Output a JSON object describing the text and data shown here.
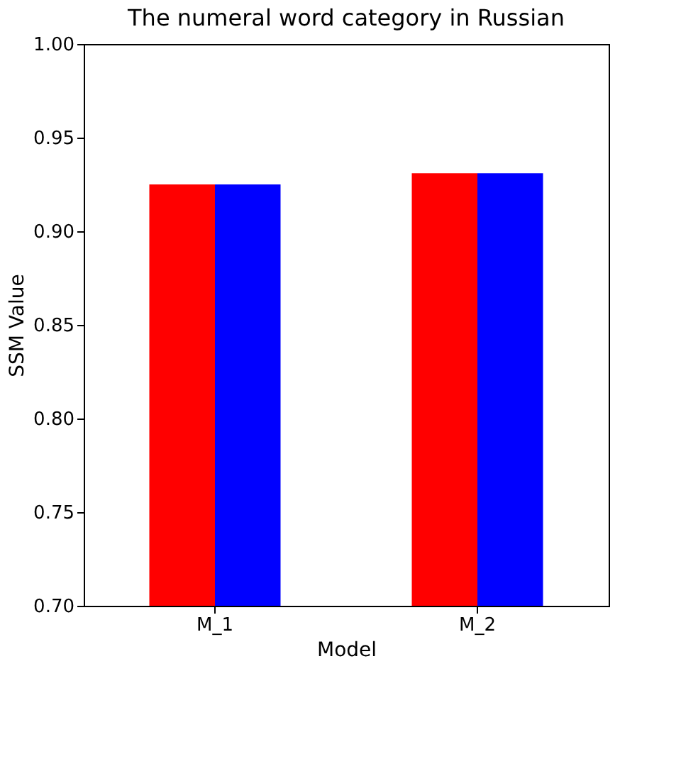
{
  "chart_data": {
    "type": "bar",
    "title": "The numeral word category in Russian",
    "xlabel": "Model",
    "ylabel": "SSM Value",
    "categories": [
      "M_1",
      "M_2"
    ],
    "series": [
      {
        "color": "#ff0000",
        "values": [
          0.925,
          0.931
        ]
      },
      {
        "color": "#0000ff",
        "values": [
          0.925,
          0.931
        ]
      }
    ],
    "ylim": [
      0.7,
      1.0
    ],
    "yticks": [
      {
        "value": 0.7,
        "label": "0.70"
      },
      0.75,
      {
        "value": 0.8,
        "label": "0.80"
      },
      0.85,
      {
        "value": 0.9,
        "label": "0.90"
      },
      0.95,
      {
        "value": 1.0,
        "label": "1.00"
      }
    ],
    "grid": false,
    "legend": false
  }
}
